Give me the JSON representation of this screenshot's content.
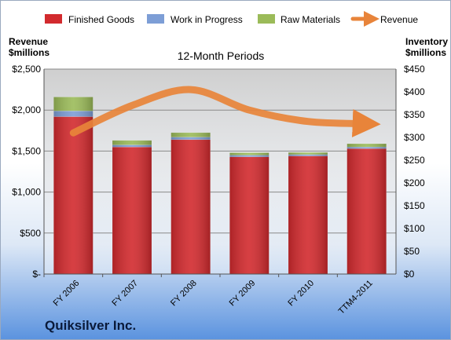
{
  "chart_data": {
    "type": "bar",
    "title": "12-Month Periods",
    "footer": "Quiksilver Inc.",
    "categories": [
      "FY 2006",
      "FY 2007",
      "FY 2008",
      "FY 2009",
      "FY 2010",
      "TTM4-2011"
    ],
    "stacked": true,
    "left_axis": {
      "label": [
        "Revenue",
        "$millions"
      ],
      "ticks": [
        "$-",
        "$500",
        "$1,000",
        "$1,500",
        "$2,000",
        "$2,500"
      ],
      "ylim": [
        0,
        2500
      ]
    },
    "right_axis": {
      "label": [
        "Inventory",
        "$millions"
      ],
      "ticks": [
        "$0",
        "$50",
        "$100",
        "$150",
        "$200",
        "$250",
        "$300",
        "$350",
        "$400",
        "$450"
      ],
      "ylim": [
        0,
        450
      ]
    },
    "series": [
      {
        "name": "Finished Goods",
        "axis": "left",
        "color": "#d22a2e",
        "values": [
          1920,
          1550,
          1640,
          1430,
          1440,
          1530
        ]
      },
      {
        "name": "Work in Progress",
        "axis": "left",
        "color": "#7d9ed6",
        "values": [
          70,
          25,
          30,
          20,
          18,
          20
        ]
      },
      {
        "name": "Raw Materials",
        "axis": "left",
        "color": "#9bbb59",
        "values": [
          170,
          55,
          55,
          30,
          25,
          40
        ]
      },
      {
        "name": "Revenue",
        "axis": "right",
        "color": "#e8843a",
        "type": "line",
        "values": [
          310,
          370,
          405,
          360,
          335,
          330
        ]
      }
    ],
    "grid": true,
    "legend_position": "top"
  }
}
